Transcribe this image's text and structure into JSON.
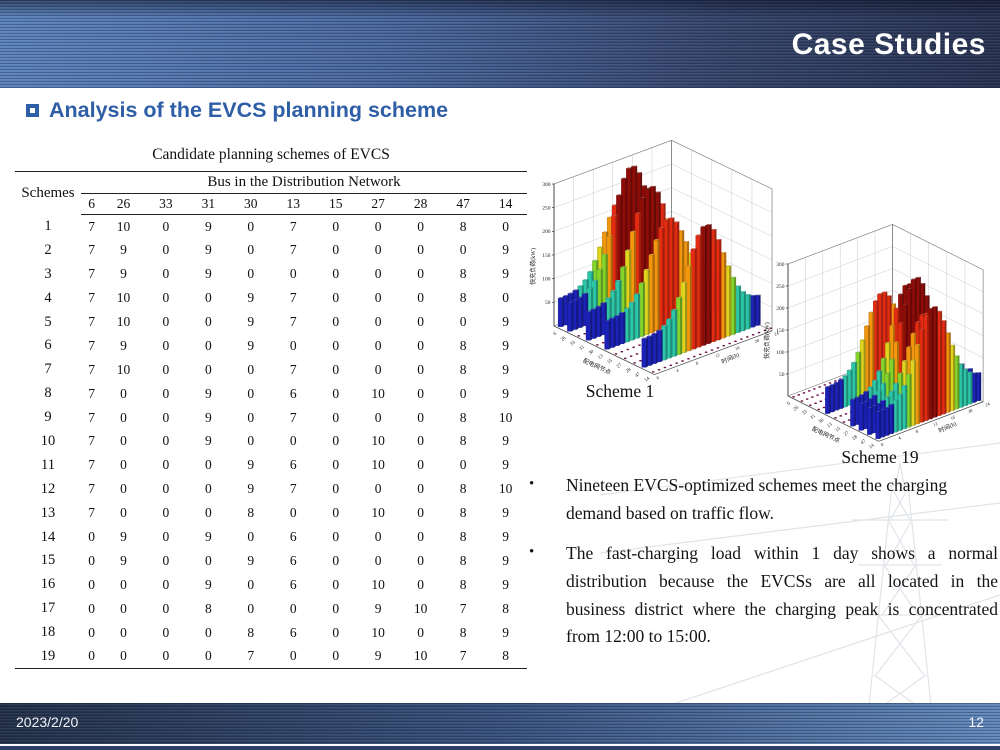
{
  "slide": {
    "header": {
      "title": "Case Studies"
    },
    "heading": {
      "text": "Analysis of the EVCS planning scheme"
    },
    "table": {
      "title": "Candidate planning schemes of EVCS",
      "row_header": "Schemes",
      "group_header": "Bus in the Distribution Network",
      "columns": [
        "6",
        "26",
        "33",
        "31",
        "30",
        "13",
        "15",
        "27",
        "28",
        "47",
        "14"
      ],
      "rows": [
        {
          "scheme": "1",
          "values": [
            7,
            10,
            0,
            9,
            0,
            7,
            0,
            0,
            0,
            8,
            0
          ]
        },
        {
          "scheme": "2",
          "values": [
            7,
            9,
            0,
            9,
            0,
            7,
            0,
            0,
            0,
            0,
            9
          ]
        },
        {
          "scheme": "3",
          "values": [
            7,
            9,
            0,
            9,
            0,
            0,
            0,
            0,
            0,
            8,
            9
          ]
        },
        {
          "scheme": "4",
          "values": [
            7,
            10,
            0,
            0,
            9,
            7,
            0,
            0,
            0,
            8,
            0
          ]
        },
        {
          "scheme": "5",
          "values": [
            7,
            10,
            0,
            0,
            9,
            7,
            0,
            0,
            0,
            0,
            9
          ]
        },
        {
          "scheme": "6",
          "values": [
            7,
            9,
            0,
            0,
            9,
            0,
            0,
            0,
            0,
            8,
            9
          ]
        },
        {
          "scheme": "7",
          "values": [
            7,
            10,
            0,
            0,
            0,
            7,
            0,
            0,
            0,
            8,
            9
          ]
        },
        {
          "scheme": "8",
          "values": [
            7,
            0,
            0,
            9,
            0,
            6,
            0,
            10,
            0,
            0,
            9
          ]
        },
        {
          "scheme": "9",
          "values": [
            7,
            0,
            0,
            9,
            0,
            7,
            0,
            0,
            0,
            8,
            10
          ]
        },
        {
          "scheme": "10",
          "values": [
            7,
            0,
            0,
            9,
            0,
            0,
            0,
            10,
            0,
            8,
            9
          ]
        },
        {
          "scheme": "11",
          "values": [
            7,
            0,
            0,
            0,
            9,
            6,
            0,
            10,
            0,
            0,
            9
          ]
        },
        {
          "scheme": "12",
          "values": [
            7,
            0,
            0,
            0,
            9,
            7,
            0,
            0,
            0,
            8,
            10
          ]
        },
        {
          "scheme": "13",
          "values": [
            7,
            0,
            0,
            0,
            8,
            0,
            0,
            10,
            0,
            8,
            9
          ]
        },
        {
          "scheme": "14",
          "values": [
            0,
            9,
            0,
            9,
            0,
            6,
            0,
            0,
            0,
            8,
            9
          ]
        },
        {
          "scheme": "15",
          "values": [
            0,
            9,
            0,
            0,
            9,
            6,
            0,
            0,
            0,
            8,
            9
          ]
        },
        {
          "scheme": "16",
          "values": [
            0,
            0,
            0,
            9,
            0,
            6,
            0,
            10,
            0,
            8,
            9
          ]
        },
        {
          "scheme": "17",
          "values": [
            0,
            0,
            0,
            8,
            0,
            0,
            0,
            9,
            10,
            7,
            8
          ]
        },
        {
          "scheme": "18",
          "values": [
            0,
            0,
            0,
            0,
            8,
            6,
            0,
            10,
            0,
            8,
            9
          ]
        },
        {
          "scheme": "19",
          "values": [
            0,
            0,
            0,
            0,
            7,
            0,
            0,
            9,
            10,
            7,
            8
          ]
        }
      ]
    },
    "bullets": [
      "Nineteen EVCS-optimized schemes meet the charging demand based on traffic flow.",
      "The fast-charging load within 1 day shows a normal distribution because the EVCSs are all located in the business district where the charging peak is concentrated from 12:00 to 15:00."
    ],
    "footer": {
      "date": "2023/2/20",
      "page": "12"
    },
    "colors": {
      "accent_blue": "#2e5ea6",
      "band_dark": "#283250",
      "band_light": "#5d84bd"
    }
  },
  "chart_data": [
    {
      "type": "bar",
      "subtype": "3d-bar-surface",
      "caption": "Scheme 1",
      "zlabel": "快充负荷(kW)",
      "node_axis_label": "配电网节点",
      "time_axis_label": "时间(h)",
      "nodes": [
        "6",
        "26",
        "33",
        "31",
        "30",
        "13",
        "15",
        "27",
        "28",
        "47",
        "14"
      ],
      "station_sizes": [
        7,
        10,
        0,
        9,
        0,
        7,
        0,
        0,
        0,
        8,
        0
      ],
      "time_range_h": {
        "min": 0,
        "max": 24,
        "label_step": 4
      },
      "zticks": [
        50,
        100,
        150,
        200,
        250,
        300
      ],
      "zlim": [
        0,
        300
      ],
      "peak_hour": 13,
      "sigma_hours": 3.6,
      "base_load_kw": 60,
      "peak_load_kw_at_size10": 300,
      "color_scale": [
        {
          "max_kw": 70,
          "color": "#1c22b8"
        },
        {
          "max_kw": 105,
          "color": "#2cc6a8"
        },
        {
          "max_kw": 135,
          "color": "#84d42c"
        },
        {
          "max_kw": 162,
          "color": "#e0d41e"
        },
        {
          "max_kw": 197,
          "color": "#f2960e"
        },
        {
          "max_kw": 242,
          "color": "#e22b10"
        },
        {
          "max_kw": 9999,
          "color": "#8f0d08"
        }
      ],
      "zero_row_dash_color": "#70104a",
      "grid": true,
      "description": "Fast-charging load per distribution-network node over 24 h; normal distribution peaking 12:00-15:00"
    },
    {
      "type": "bar",
      "subtype": "3d-bar-surface",
      "caption": "Scheme 19",
      "zlabel": "快充负荷(kW)",
      "node_axis_label": "配电网节点",
      "time_axis_label": "时间(h)",
      "nodes": [
        "6",
        "26",
        "33",
        "31",
        "30",
        "13",
        "15",
        "27",
        "28",
        "47",
        "14"
      ],
      "station_sizes": [
        0,
        0,
        0,
        0,
        7,
        0,
        0,
        9,
        10,
        7,
        8
      ],
      "time_range_h": {
        "min": 0,
        "max": 24,
        "label_step": 4
      },
      "zticks": [
        50,
        100,
        150,
        200,
        250,
        300
      ],
      "zlim": [
        0,
        300
      ],
      "peak_hour": 13,
      "sigma_hours": 3.6,
      "base_load_kw": 60,
      "peak_load_kw_at_size10": 300,
      "color_scale": [
        {
          "max_kw": 70,
          "color": "#1c22b8"
        },
        {
          "max_kw": 105,
          "color": "#2cc6a8"
        },
        {
          "max_kw": 135,
          "color": "#84d42c"
        },
        {
          "max_kw": 162,
          "color": "#e0d41e"
        },
        {
          "max_kw": 197,
          "color": "#f2960e"
        },
        {
          "max_kw": 242,
          "color": "#e22b10"
        },
        {
          "max_kw": 9999,
          "color": "#8f0d08"
        }
      ],
      "zero_row_dash_color": "#70104a",
      "grid": true,
      "description": "Fast-charging load per distribution-network node over 24 h; normal distribution peaking 12:00-15:00"
    }
  ]
}
